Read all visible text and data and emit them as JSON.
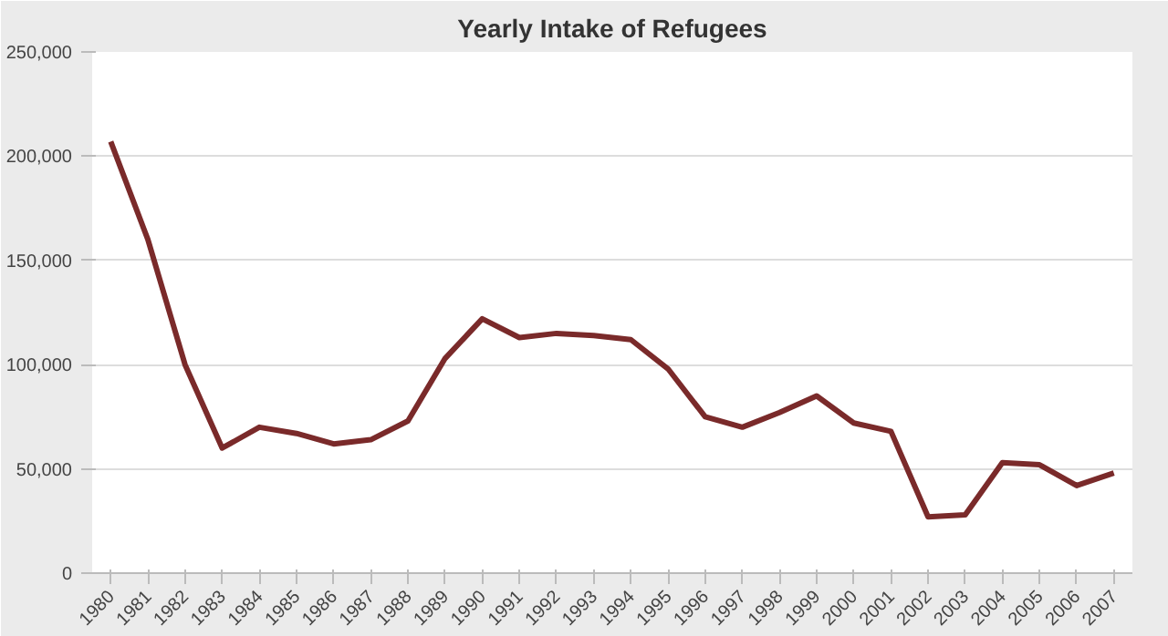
{
  "chart_data": {
    "type": "line",
    "title": "Yearly Intake of Refugees",
    "categories": [
      "1980",
      "1981",
      "1982",
      "1983",
      "1984",
      "1985",
      "1986",
      "1987",
      "1988",
      "1989",
      "1990",
      "1991",
      "1992",
      "1993",
      "1994",
      "1995",
      "1996",
      "1997",
      "1998",
      "1999",
      "2000",
      "2001",
      "2002",
      "2003",
      "2004",
      "2005",
      "2006",
      "2007"
    ],
    "series": [
      {
        "color": "#7a2a2a",
        "values": [
          207000,
          160000,
          100000,
          60000,
          70000,
          67000,
          62000,
          64000,
          73000,
          103000,
          122000,
          113000,
          115000,
          114000,
          112000,
          98000,
          75000,
          70000,
          77000,
          85000,
          72000,
          68000,
          27000,
          28000,
          53000,
          52000,
          42000,
          48000
        ]
      }
    ],
    "ylim": [
      0,
      250000
    ],
    "yticks": [
      {
        "value": 0,
        "label": "0"
      },
      {
        "value": 50000,
        "label": "50,000"
      },
      {
        "value": 100000,
        "label": "100,000"
      },
      {
        "value": 150000,
        "label": "150,000"
      },
      {
        "value": 200000,
        "label": "200,000"
      },
      {
        "value": 250000,
        "label": "250,000"
      }
    ],
    "grid": "y",
    "marker": "none",
    "line_style": "solid"
  }
}
